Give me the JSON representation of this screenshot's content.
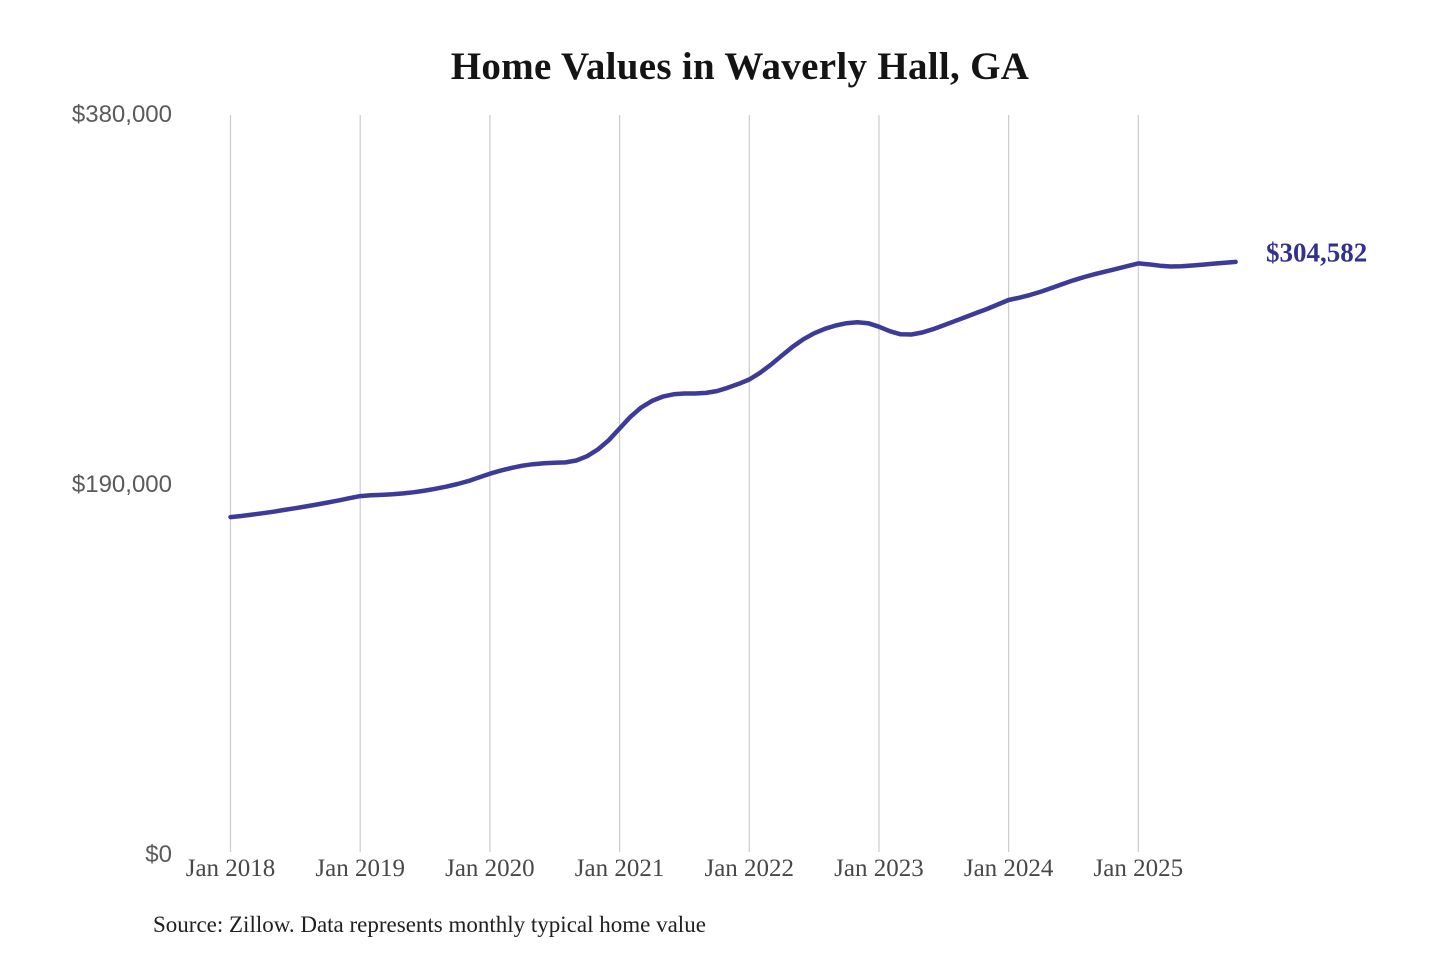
{
  "title": "Home Values in Waverly Hall, GA",
  "source_note": "Source: Zillow. Data represents monthly typical home value",
  "annotation": {
    "label": "$304,582"
  },
  "colors": {
    "background": "#ffffff",
    "line": "#3d3b98",
    "annotation": "#32318e",
    "gridline": "#cccccc",
    "y_label": "#5a5a5a",
    "x_label": "#484848",
    "title": "#141414",
    "source": "#202020"
  },
  "chart_data": {
    "type": "line",
    "title": "Home Values in Waverly Hall, GA",
    "xlabel": "",
    "ylabel": "",
    "ylim": [
      0,
      380000
    ],
    "grid": "vertical-only",
    "legend": "none",
    "x_start": "2018-01",
    "x_interval_months": 1,
    "x_ticks": [
      "Jan 2018",
      "Jan 2019",
      "Jan 2020",
      "Jan 2021",
      "Jan 2022",
      "Jan 2023",
      "Jan 2024",
      "Jan 2025"
    ],
    "y_ticks": [
      {
        "value": 0,
        "label": "$0"
      },
      {
        "value": 190000,
        "label": "$190,000"
      },
      {
        "value": 380000,
        "label": "$380,000"
      }
    ],
    "end_label": "$304,582",
    "final_value": 304582,
    "series": [
      {
        "name": "Monthly typical home value",
        "values": [
          173500,
          174100,
          174800,
          175500,
          176300,
          177200,
          178100,
          179000,
          180000,
          181000,
          182100,
          183200,
          184300,
          184700,
          184900,
          185200,
          185700,
          186300,
          187100,
          188100,
          189200,
          190500,
          192000,
          193900,
          195800,
          197400,
          198800,
          199900,
          200700,
          201200,
          201400,
          201600,
          202600,
          204800,
          208300,
          213000,
          219000,
          225000,
          229800,
          233200,
          235400,
          236600,
          237000,
          237000,
          237300,
          238200,
          239900,
          241900,
          244200,
          247600,
          251800,
          256400,
          260900,
          264800,
          267900,
          270200,
          271900,
          273100,
          273600,
          273100,
          271300,
          269000,
          267400,
          267300,
          268300,
          270000,
          272000,
          274100,
          276200,
          278300,
          280400,
          282700,
          285000,
          286200,
          287600,
          289300,
          291200,
          293200,
          295100,
          296800,
          298300,
          299700,
          301000,
          302400,
          303800,
          303300,
          302600,
          302200,
          302300,
          302700,
          303200,
          303700,
          304100,
          304582
        ]
      }
    ]
  }
}
